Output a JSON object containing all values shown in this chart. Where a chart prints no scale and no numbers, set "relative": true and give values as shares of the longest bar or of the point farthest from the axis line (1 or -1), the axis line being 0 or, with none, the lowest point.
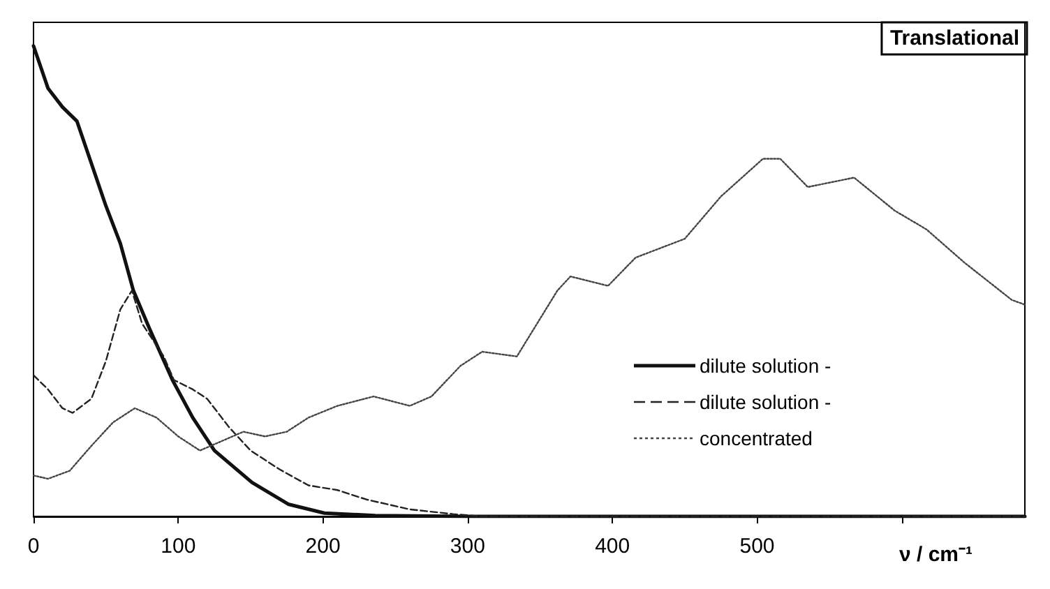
{
  "chart_data": {
    "type": "line",
    "title": "Translational",
    "xlabel": "ν / cm⁻¹",
    "relative": true,
    "xlim": [
      0,
      685
    ],
    "xticks": [
      0,
      100,
      200,
      300,
      400,
      500,
      {
        "value": 600,
        "label": null
      }
    ],
    "grid": false,
    "legend": "bottom right",
    "marker": "none",
    "series": [
      {
        "name": "dilute solution -",
        "color": "#111111",
        "line_style": "solid",
        "x": [
          0,
          10,
          20,
          30,
          40,
          50,
          60,
          69,
          80,
          96,
          110,
          125,
          151,
          176,
          201,
          236,
          300,
          685
        ],
        "values": [
          1,
          0.91,
          0.87,
          0.84,
          0.75,
          0.66,
          0.58,
          0.48,
          0.4,
          0.29,
          0.21,
          0.14,
          0.072,
          0.026,
          0.007,
          0.002,
          0,
          0
        ]
      },
      {
        "name": "dilute solution -",
        "color": "#222222",
        "line_style": "dashed",
        "x": [
          0,
          10,
          20,
          27,
          40,
          50,
          60,
          68,
          75,
          90,
          97,
          110,
          120,
          135,
          150,
          170,
          190,
          210,
          230,
          260,
          290,
          310,
          685
        ],
        "values": [
          0.3,
          0.27,
          0.23,
          0.22,
          0.25,
          0.33,
          0.44,
          0.48,
          0.41,
          0.34,
          0.29,
          0.27,
          0.25,
          0.19,
          0.14,
          0.1,
          0.066,
          0.056,
          0.036,
          0.015,
          0.005,
          0,
          0
        ]
      },
      {
        "name": "concentrated",
        "color": "#444444",
        "line_style": "dotted",
        "x": [
          0,
          10,
          25,
          40,
          55,
          70,
          85,
          100,
          115,
          130,
          145,
          160,
          175,
          190,
          210,
          235,
          260,
          275,
          295,
          310,
          334,
          362,
          371,
          397,
          416,
          450,
          475,
          504,
          516,
          535,
          567,
          595,
          617,
          643,
          676,
          685
        ],
        "values": [
          0.087,
          0.08,
          0.097,
          0.15,
          0.2,
          0.23,
          0.21,
          0.17,
          0.14,
          0.16,
          0.18,
          0.17,
          0.18,
          0.21,
          0.235,
          0.255,
          0.235,
          0.255,
          0.32,
          0.35,
          0.34,
          0.48,
          0.51,
          0.49,
          0.55,
          0.59,
          0.68,
          0.76,
          0.76,
          0.7,
          0.72,
          0.65,
          0.61,
          0.54,
          0.46,
          0.45
        ]
      }
    ]
  }
}
